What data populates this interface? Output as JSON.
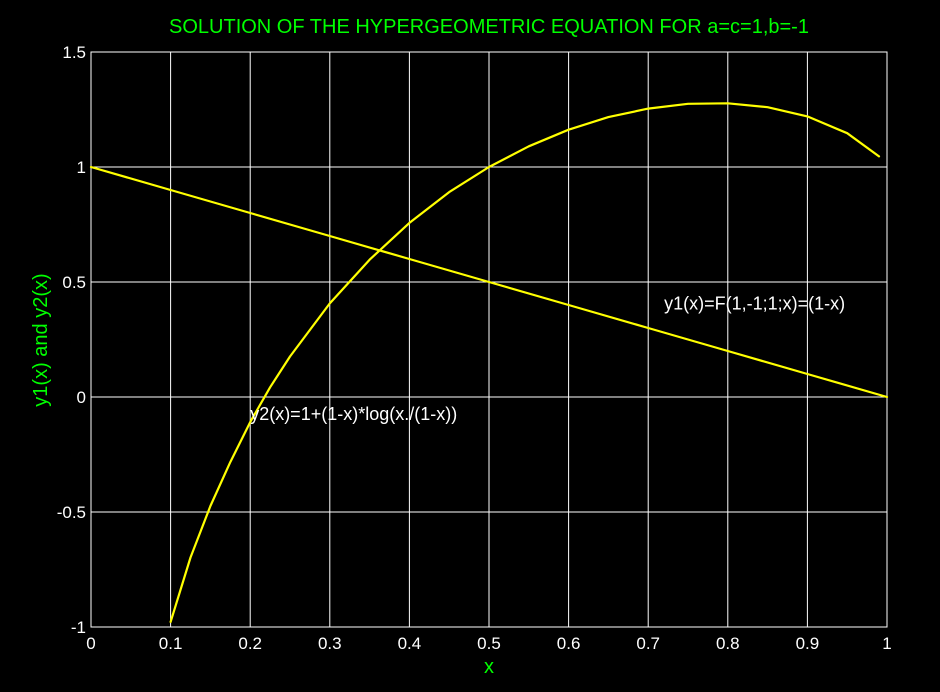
{
  "chart_data": {
    "type": "line",
    "title": "SOLUTION OF THE HYPERGEOMETRIC EQUATION FOR a=c=1,b=-1",
    "xlabel": "x",
    "ylabel": "y1(x) and y2(x)",
    "xlim": [
      0,
      1
    ],
    "ylim": [
      -1,
      1.5
    ],
    "grid": true,
    "x_ticks": [
      "0",
      "0.1",
      "0.2",
      "0.3",
      "0.4",
      "0.5",
      "0.6",
      "0.7",
      "0.8",
      "0.9",
      "1"
    ],
    "y_ticks": [
      "-1",
      "-0.5",
      "0",
      "0.5",
      "1",
      "1.5"
    ],
    "series": [
      {
        "name": "y1(x)=F(1,-1;1;x)=(1-x)",
        "color": "#ffff00",
        "x": [
          0,
          0.1,
          0.2,
          0.3,
          0.4,
          0.5,
          0.6,
          0.7,
          0.8,
          0.9,
          1.0
        ],
        "y": [
          1,
          0.9,
          0.8,
          0.7,
          0.6,
          0.5,
          0.4,
          0.3,
          0.2,
          0.1,
          0
        ]
      },
      {
        "name": "y2(x)=1+(1-x)*log(x./(1-x))",
        "color": "#ffff00",
        "x": [
          0.1,
          0.125,
          0.15,
          0.175,
          0.2,
          0.225,
          0.25,
          0.3,
          0.35,
          0.4,
          0.45,
          0.5,
          0.55,
          0.6,
          0.65,
          0.7,
          0.75,
          0.8,
          0.85,
          0.9,
          0.95,
          0.99
        ],
        "y": [
          -0.978,
          -0.698,
          -0.474,
          -0.283,
          -0.109,
          0.042,
          0.176,
          0.407,
          0.597,
          0.757,
          0.891,
          1.0,
          1.09,
          1.162,
          1.217,
          1.254,
          1.275,
          1.277,
          1.26,
          1.22,
          1.147,
          1.046
        ]
      }
    ],
    "annotations": [
      {
        "text": "y1(x)=F(1,-1;1;x)=(1-x)",
        "x": 0.72,
        "y": 0.38
      },
      {
        "text": "y2(x)=1+(1-x)*log(x./(1-x))",
        "x": 0.2,
        "y": -0.1
      }
    ]
  }
}
